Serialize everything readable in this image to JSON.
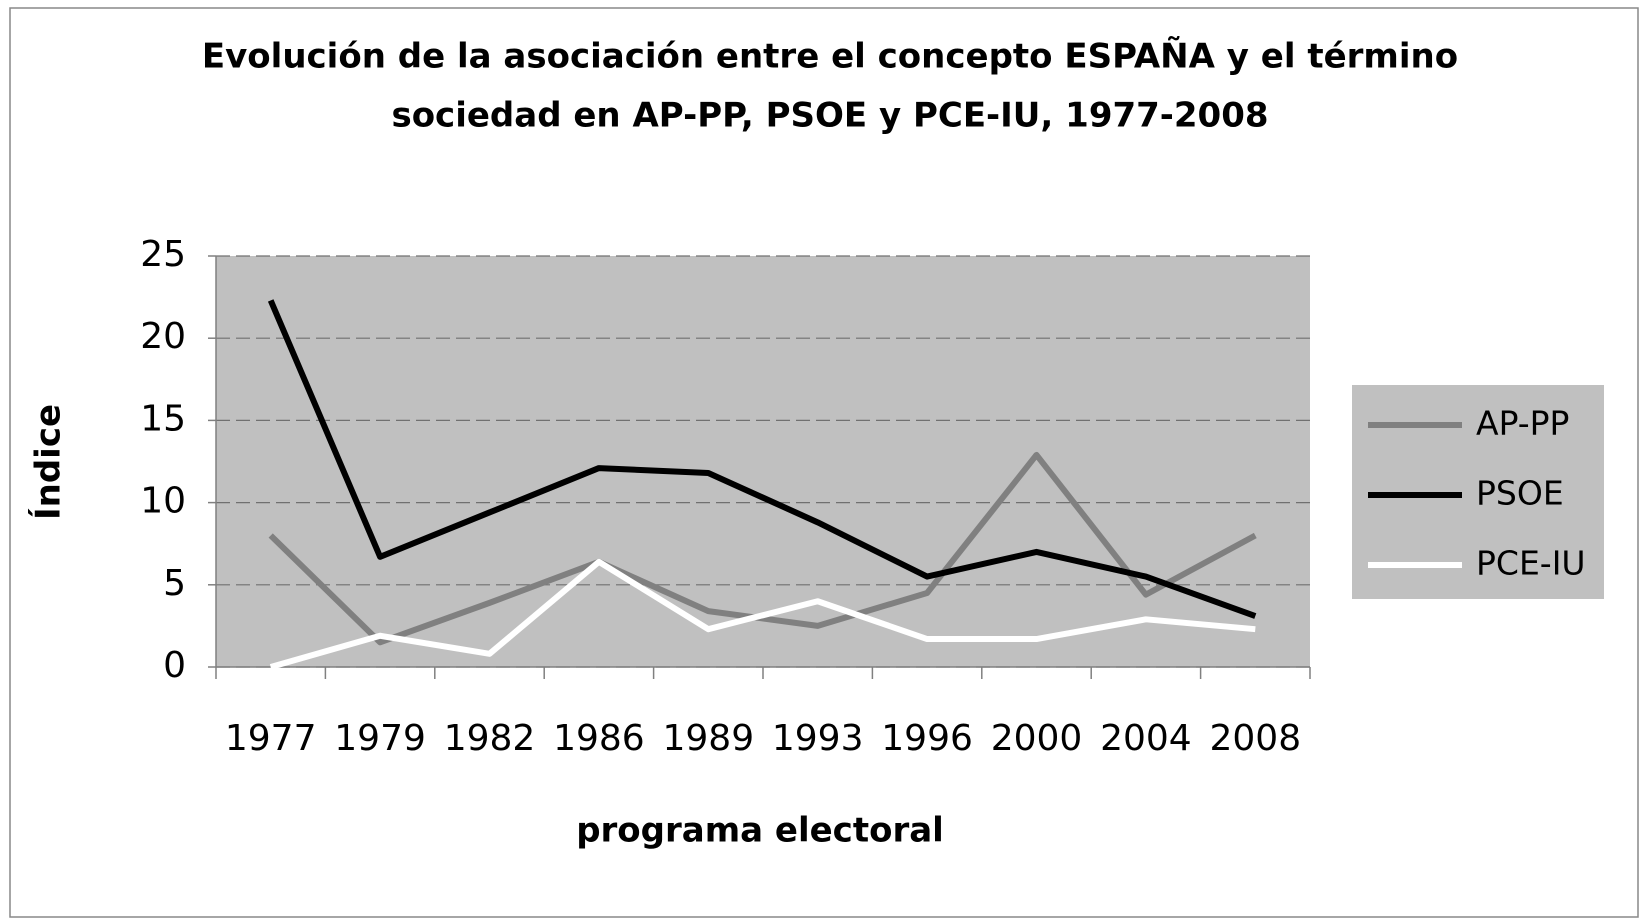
{
  "chart_data": {
    "type": "line",
    "title": [
      "Evolución de la asociación entre el concepto ESPAÑA  y el término",
      "sociedad en AP-PP, PSOE y PCE-IU, 1977-2008"
    ],
    "x_label": "programa electoral",
    "y_label": "Índice",
    "categories": [
      "1977",
      "1979",
      "1982",
      "1986",
      "1989",
      "1993",
      "1996",
      "2000",
      "2004",
      "2008"
    ],
    "series": [
      {
        "name": "AP-PP",
        "color": "#808080",
        "values": [
          8.0,
          1.5,
          3.9,
          6.4,
          3.4,
          2.5,
          4.5,
          12.9,
          4.4,
          8.0
        ]
      },
      {
        "name": "PSOE",
        "color": "#000000",
        "values": [
          22.3,
          6.7,
          9.4,
          12.1,
          11.8,
          8.8,
          5.5,
          7.0,
          5.5,
          3.1
        ]
      },
      {
        "name": "PCE-IU",
        "color": "#ffffff",
        "values": [
          0,
          1.9,
          0.8,
          6.4,
          2.3,
          4.0,
          1.7,
          1.7,
          2.9,
          2.3
        ]
      }
    ],
    "ylim": [
      0,
      25
    ],
    "yticks": [
      0,
      5,
      10,
      15,
      20,
      25
    ],
    "grid": true,
    "legend": "right"
  }
}
